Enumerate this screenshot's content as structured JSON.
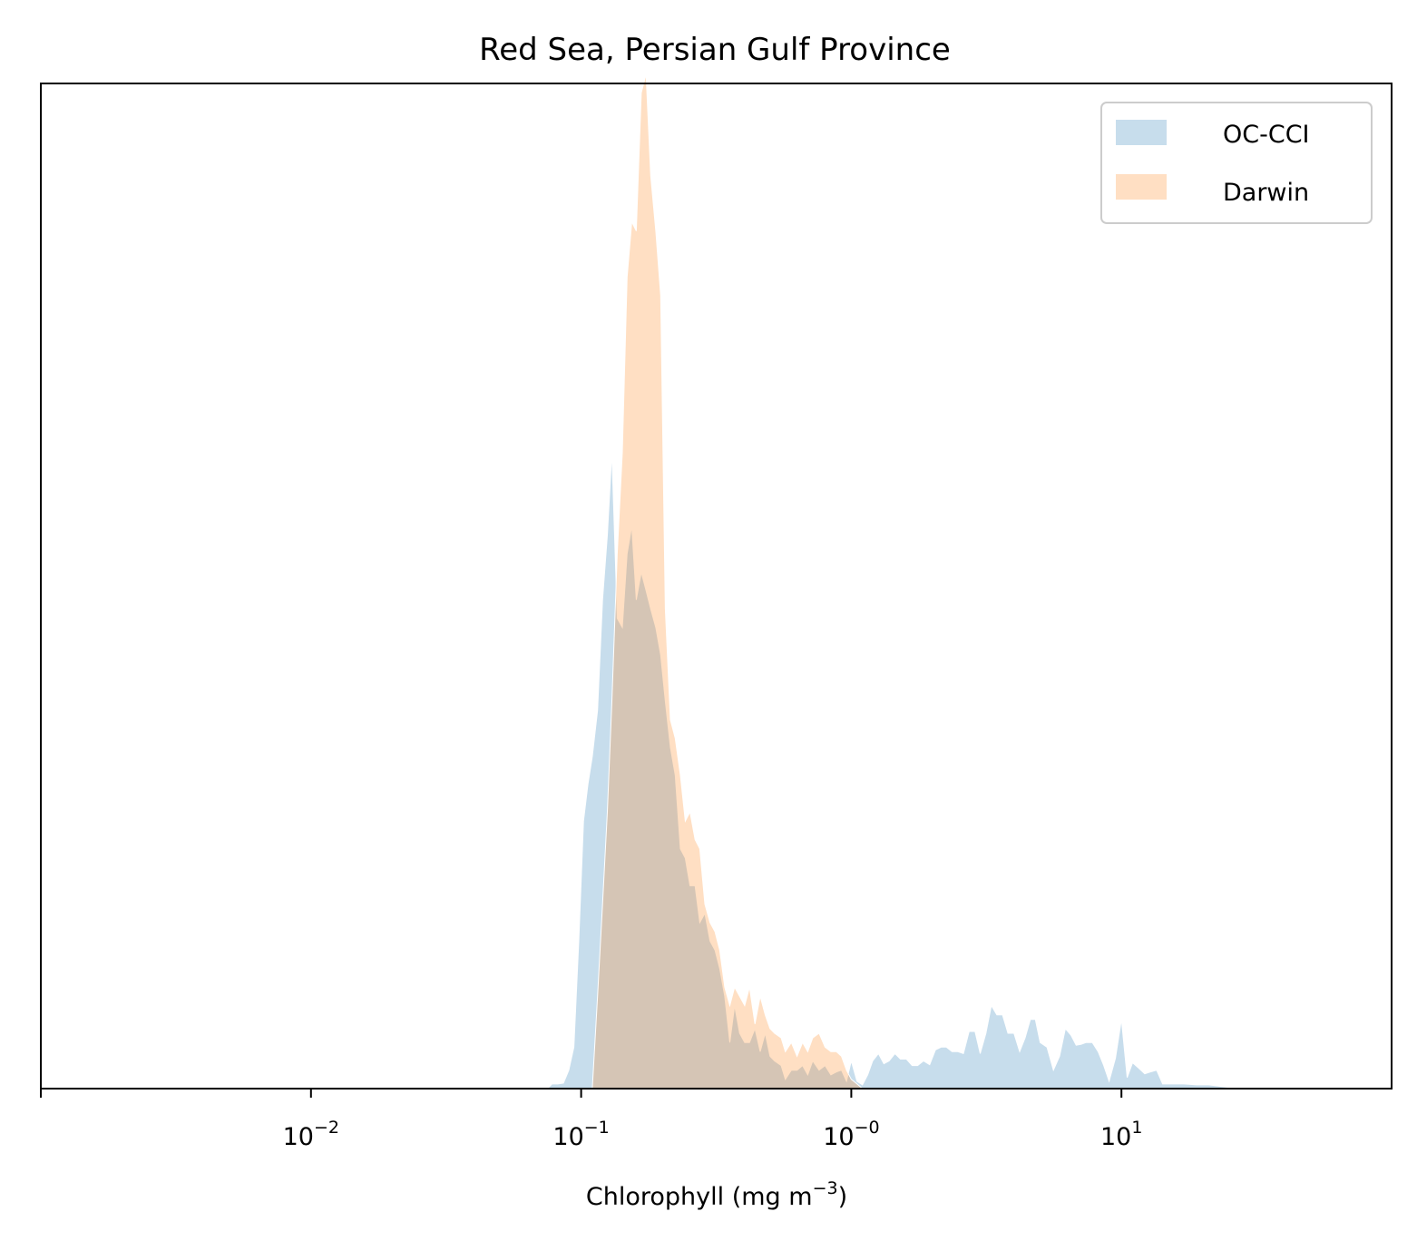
{
  "chart_data": {
    "type": "area",
    "title": "Red Sea, Persian Gulf Province",
    "xlabel": "Chlorophyll  (mg m",
    "xlabel_superscript": "−3",
    "xlabel_suffix": ")",
    "ylabel": "",
    "x_scale": "log",
    "xlim": [
      0.001,
      100
    ],
    "ylim": [
      0,
      1.09
    ],
    "yticks_visible": false,
    "grid": false,
    "legend_placement": "upper right",
    "xticks": [
      {
        "value": 0.001,
        "base": "",
        "exp": ""
      },
      {
        "value": 0.01,
        "base": "10",
        "exp": "−2"
      },
      {
        "value": 0.1,
        "base": "10",
        "exp": "−1"
      },
      {
        "value": 1,
        "base": "10",
        "exp": "−0"
      },
      {
        "value": 10,
        "base": "10",
        "exp": "1"
      }
    ],
    "series": [
      {
        "name": "OC-CCI",
        "color": "#1f77b4",
        "alpha": 0.25,
        "x": [
          0.075,
          0.078,
          0.082,
          0.086,
          0.09,
          0.094,
          0.098,
          0.102,
          0.106,
          0.11,
          0.115,
          0.12,
          0.125,
          0.13,
          0.136,
          0.142,
          0.148,
          0.154,
          0.16,
          0.167,
          0.174,
          0.181,
          0.189,
          0.197,
          0.205,
          0.214,
          0.223,
          0.233,
          0.243,
          0.253,
          0.264,
          0.275,
          0.287,
          0.3,
          0.313,
          0.326,
          0.34,
          0.355,
          0.37,
          0.386,
          0.403,
          0.42,
          0.44,
          0.46,
          0.48,
          0.5,
          0.52,
          0.55,
          0.57,
          0.6,
          0.63,
          0.66,
          0.69,
          0.72,
          0.76,
          0.8,
          0.84,
          0.88,
          0.92,
          0.96,
          1.0,
          1.05,
          1.1,
          1.15,
          1.2,
          1.26,
          1.32,
          1.38,
          1.45,
          1.52,
          1.6,
          1.68,
          1.76,
          1.85,
          1.95,
          2.05,
          2.15,
          2.25,
          2.36,
          2.48,
          2.6,
          2.73,
          2.87,
          3.0,
          3.15,
          3.3,
          3.46,
          3.63,
          3.8,
          4.0,
          4.2,
          4.4,
          4.6,
          4.8,
          5.0,
          5.3,
          5.6,
          5.9,
          6.2,
          6.5,
          6.8,
          7.1,
          7.4,
          7.8,
          8.2,
          8.6,
          9.0,
          9.5,
          10.0,
          10.5,
          11.0,
          11.6,
          12.2,
          12.8,
          13.5,
          14.2,
          15,
          17,
          19,
          21,
          24,
          27
        ],
        "y": [
          0.0,
          0.005,
          0.005,
          0.006,
          0.02,
          0.045,
          0.16,
          0.29,
          0.33,
          0.36,
          0.41,
          0.53,
          0.6,
          0.69,
          0.51,
          0.5,
          0.58,
          0.61,
          0.53,
          0.56,
          0.54,
          0.52,
          0.5,
          0.47,
          0.42,
          0.37,
          0.34,
          0.26,
          0.25,
          0.22,
          0.22,
          0.18,
          0.19,
          0.16,
          0.15,
          0.13,
          0.1,
          0.05,
          0.09,
          0.06,
          0.05,
          0.05,
          0.065,
          0.04,
          0.06,
          0.035,
          0.03,
          0.025,
          0.01,
          0.02,
          0.02,
          0.025,
          0.015,
          0.03,
          0.02,
          0.025,
          0.015,
          0.018,
          0.02,
          0.008,
          0.03,
          0.008,
          0.004,
          0.015,
          0.03,
          0.038,
          0.027,
          0.03,
          0.038,
          0.032,
          0.032,
          0.025,
          0.025,
          0.03,
          0.026,
          0.042,
          0.045,
          0.045,
          0.04,
          0.04,
          0.038,
          0.062,
          0.062,
          0.038,
          0.06,
          0.09,
          0.08,
          0.08,
          0.06,
          0.06,
          0.04,
          0.055,
          0.075,
          0.075,
          0.05,
          0.045,
          0.02,
          0.035,
          0.065,
          0.058,
          0.047,
          0.048,
          0.05,
          0.05,
          0.04,
          0.025,
          0.008,
          0.033,
          0.075,
          0.012,
          0.028,
          0.022,
          0.016,
          0.018,
          0.02,
          0.005,
          0.005,
          0.005,
          0.004,
          0.004,
          0.002,
          0.0
        ]
      },
      {
        "name": "Darwin",
        "color": "#ff7f0e",
        "alpha": 0.25,
        "x": [
          0.11,
          0.115,
          0.12,
          0.125,
          0.13,
          0.136,
          0.142,
          0.148,
          0.154,
          0.16,
          0.167,
          0.174,
          0.181,
          0.189,
          0.197,
          0.205,
          0.214,
          0.223,
          0.233,
          0.243,
          0.253,
          0.264,
          0.275,
          0.287,
          0.3,
          0.313,
          0.326,
          0.34,
          0.355,
          0.37,
          0.386,
          0.403,
          0.42,
          0.44,
          0.46,
          0.48,
          0.5,
          0.52,
          0.55,
          0.57,
          0.6,
          0.63,
          0.66,
          0.69,
          0.72,
          0.76,
          0.8,
          0.84,
          0.88,
          0.92,
          0.96,
          1.0,
          1.05,
          1.1
        ],
        "y": [
          0.0,
          0.1,
          0.2,
          0.3,
          0.42,
          0.58,
          0.69,
          0.88,
          0.94,
          0.93,
          1.08,
          1.1,
          0.99,
          0.93,
          0.86,
          0.52,
          0.4,
          0.38,
          0.34,
          0.29,
          0.3,
          0.27,
          0.26,
          0.2,
          0.18,
          0.17,
          0.15,
          0.11,
          0.09,
          0.11,
          0.1,
          0.09,
          0.11,
          0.07,
          0.1,
          0.08,
          0.065,
          0.06,
          0.055,
          0.04,
          0.05,
          0.035,
          0.05,
          0.04,
          0.055,
          0.06,
          0.045,
          0.04,
          0.04,
          0.035,
          0.02,
          0.01,
          0.005,
          0.0
        ]
      }
    ]
  }
}
